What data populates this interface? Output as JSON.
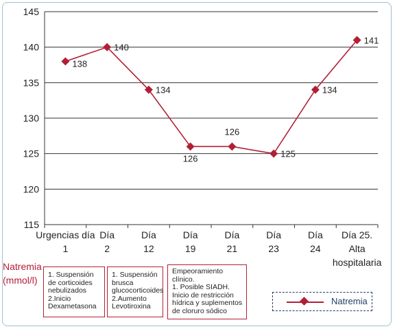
{
  "chart_data": {
    "type": "line",
    "categories": [
      [
        "Urgencias día",
        "1"
      ],
      [
        "Día",
        "2"
      ],
      [
        "Día",
        "12"
      ],
      [
        "Día",
        "19"
      ],
      [
        "Día",
        "21"
      ],
      [
        "Día",
        "23"
      ],
      [
        "Día",
        "24"
      ],
      [
        "Día 25.",
        "Alta",
        "hospitalaria"
      ]
    ],
    "series": [
      {
        "name": "Natremia",
        "values": [
          138,
          140,
          134,
          126,
          126,
          125,
          134,
          141
        ],
        "color": "#b21f35",
        "marker": "diamond"
      }
    ],
    "data_labels": [
      "138",
      "140",
      "134",
      "126",
      "126",
      "125",
      "134",
      "141"
    ],
    "ylabel": "Natremia\n(mmol/l)",
    "ylim": [
      115,
      145
    ],
    "yticks": [
      115,
      120,
      125,
      130,
      135,
      140,
      145
    ],
    "grid": "horizontal",
    "legend": "bottom-right",
    "annotations": [
      "1. Suspensión\nde corticoides\nnebulizados\n2.Inicio\nDexametasona",
      "1. Suspensión\nbrusca\nglucocorticoides\n2.Aumento\nLevotiroxina",
      "Empeoramiento\nclínico.\n1. Posible SIADH.\nInicio de restricción\nhídrica y suplementos\nde cloruro sódico"
    ]
  }
}
